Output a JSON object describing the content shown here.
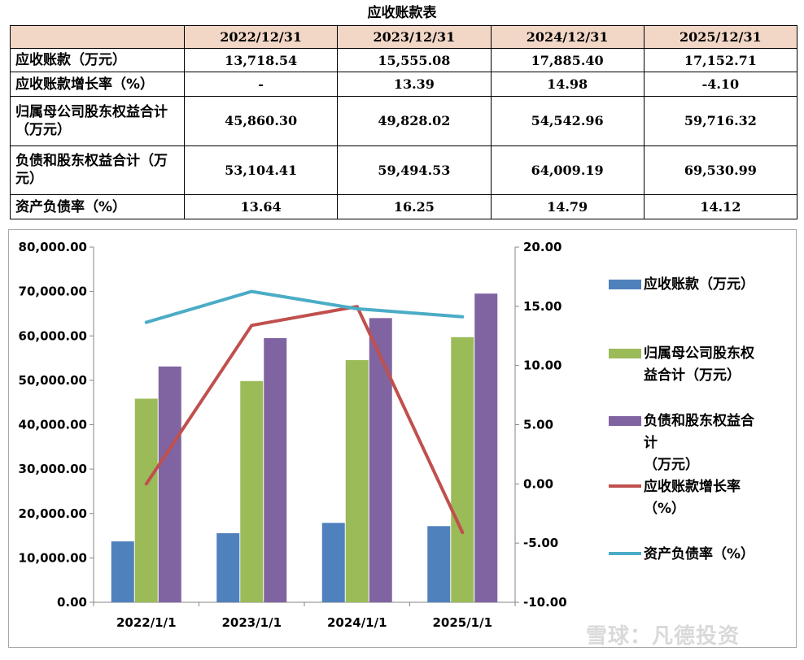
{
  "table": {
    "title": "应收账款表",
    "headers": [
      "",
      "2022/12/31",
      "2023/12/31",
      "2024/12/31",
      "2025/12/31"
    ],
    "rows": [
      {
        "label": "应收账款（万元）",
        "values": [
          "13,718.54",
          "15,555.08",
          "17,885.40",
          "17,152.71"
        ]
      },
      {
        "label": "应收账款增长率（%）",
        "values": [
          "-",
          "13.39",
          "14.98",
          "-4.10"
        ]
      },
      {
        "label": "归属母公司股东权益合计（万元）",
        "values": [
          "45,860.30",
          "49,828.02",
          "54,542.96",
          "59,716.32"
        ]
      },
      {
        "label": "负债和股东权益合计（万元）",
        "values": [
          "53,104.41",
          "59,494.53",
          "64,009.19",
          "69,530.99"
        ]
      },
      {
        "label": "资产负债率（%）",
        "values": [
          "13.64",
          "16.25",
          "14.79",
          "14.12"
        ]
      }
    ]
  },
  "chart_data": {
    "type": "bar",
    "categories": [
      "2022/1/1",
      "2023/1/1",
      "2024/1/1",
      "2025/1/1"
    ],
    "y_left": {
      "min": 0,
      "max": 80000,
      "step": 10000,
      "tick_labels": [
        "0.00",
        "10,000.00",
        "20,000.00",
        "30,000.00",
        "40,000.00",
        "50,000.00",
        "60,000.00",
        "70,000.00",
        "80,000.00"
      ]
    },
    "y_right": {
      "min": -10,
      "max": 20,
      "step": 5,
      "tick_labels": [
        "-10.00",
        "-5.00",
        "0.00",
        "5.00",
        "10.00",
        "15.00",
        "20.00"
      ]
    },
    "bar_series": [
      {
        "name": "应收账款（万元）",
        "color": "#4f81bd",
        "values": [
          13718.54,
          15555.08,
          17885.4,
          17152.71
        ]
      },
      {
        "name": "归属母公司股东权益合计（万元）",
        "color": "#9bbb59",
        "values": [
          45860.3,
          49828.02,
          54542.96,
          59716.32
        ]
      },
      {
        "name": "负债和股东权益合计（万元）",
        "color": "#8064a2",
        "values": [
          53104.41,
          59494.53,
          64009.19,
          69530.99
        ]
      }
    ],
    "line_series": [
      {
        "name": "应收账款增长率（%）",
        "color": "#c0504d",
        "values": [
          0,
          13.39,
          14.98,
          -4.1
        ]
      },
      {
        "name": "资产负债率（%）",
        "color": "#4bacc6",
        "values": [
          13.64,
          16.25,
          14.79,
          14.12
        ]
      }
    ],
    "legend": {
      "position": "right",
      "entries": [
        {
          "lines": [
            "应收账款（万元）"
          ]
        },
        {
          "lines": [
            "归属母公司股东权",
            "益合计（万元）"
          ]
        },
        {
          "lines": [
            "负债和股东权益合",
            "计",
            "（万元）"
          ]
        },
        {
          "lines": [
            "应收账款增长率",
            "（%）"
          ]
        },
        {
          "lines": [
            "资产负债率（%）"
          ]
        }
      ]
    },
    "grid": false
  },
  "watermark": "雪球：凡德投资"
}
